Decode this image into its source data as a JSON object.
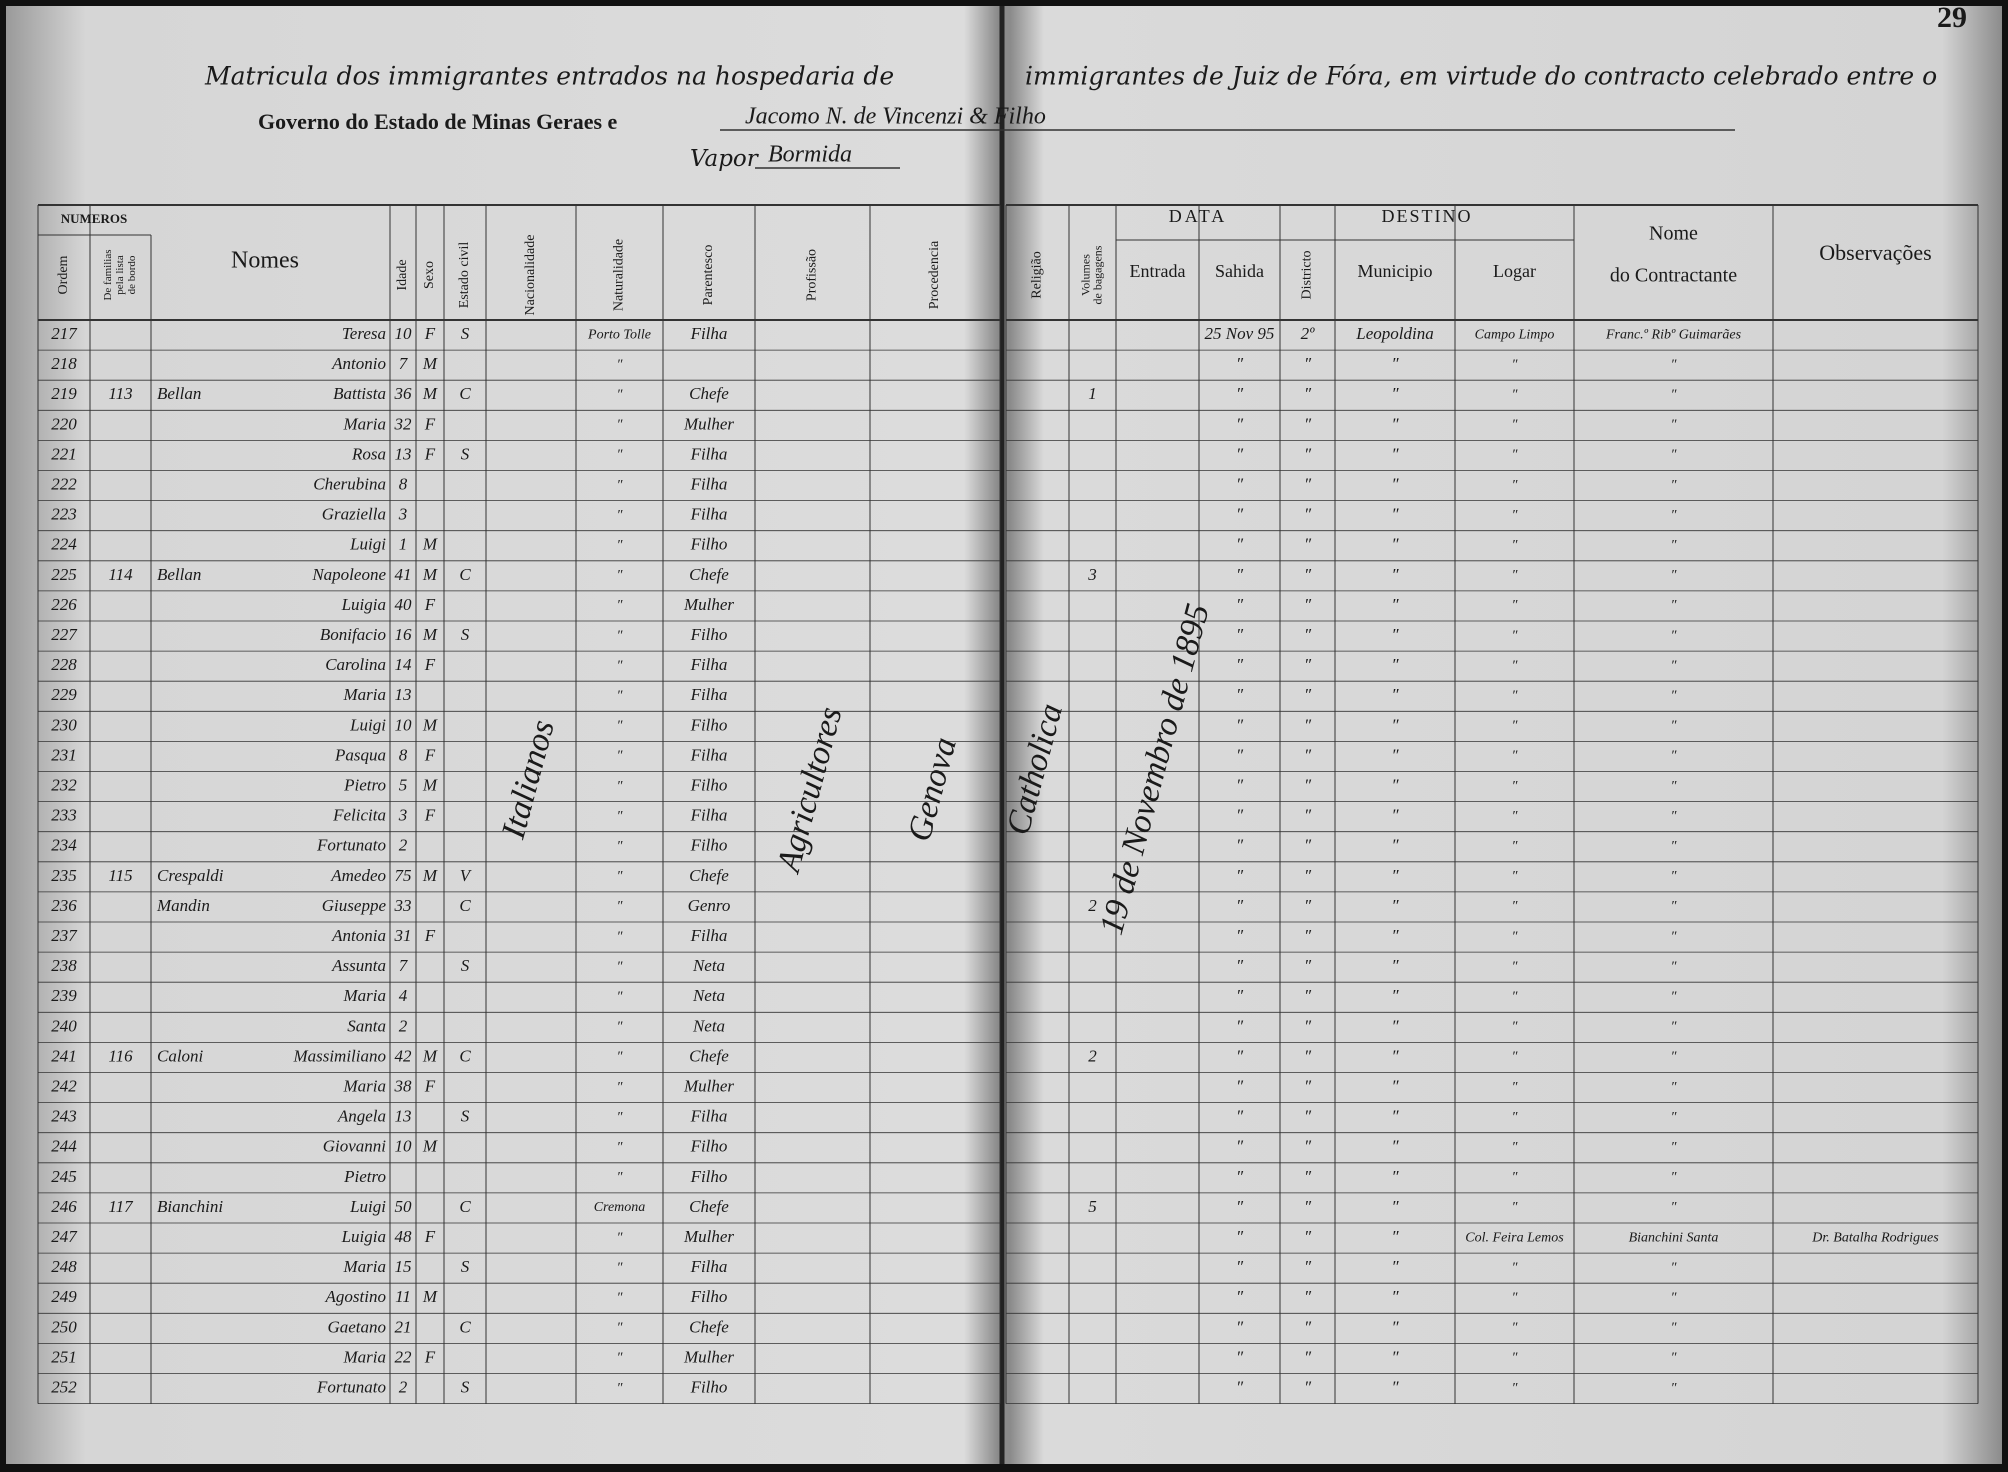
{
  "page_number": "29",
  "header": {
    "title_left": "Matricula dos immigrantes entrados na hospedaria de",
    "title_right": "immigrantes de Juiz de Fóra, em virtude do contracto celebrado entre o",
    "line2_printed": "Governo do Estado de Minas Geraes e",
    "line2_hand": "Jacomo N. de Vincenzi & Filho",
    "vapor_label": "Vapor",
    "vapor_name": "Bormida"
  },
  "columns": {
    "numeros": "NUMEROS",
    "ordem": "Ordem",
    "familias": [
      "De familias",
      "pela lista",
      "de bordo"
    ],
    "nomes": "Nomes",
    "idade": "Idade",
    "sexo": "Sexo",
    "estado_civil": "Estado civil",
    "nacionalidade": "Nacionalidade",
    "naturalidade": "Naturalidade",
    "parentesco": "Parentesco",
    "profissao": "Profissão",
    "procedencia": "Procedencia",
    "religiao": "Religião",
    "volumes": [
      "Volumes",
      "de bagagens"
    ],
    "data": "DATA",
    "entrada": "Entrada",
    "sahida": "Sahida",
    "districto": "Districto",
    "destino": "DESTINO",
    "municipio": "Municipio",
    "logar": "Logar",
    "nome_contractante": [
      "Nome",
      "do Contractante"
    ],
    "observacoes": "Observações"
  },
  "spanning": {
    "nac": "Italianos",
    "prof": "Agricultores",
    "proc": "Genova",
    "rel": "Catholica",
    "en": "19 de Novembro de 1895"
  },
  "rows": [
    {
      "o": "217",
      "n": "Teresa",
      "i": "10",
      "x": "F",
      "e": "S",
      "nat": "Porto Tolle",
      "p": "Filha",
      "sa": "25 Nov 95",
      "di": "2º",
      "mu": "Leopoldina",
      "lo": "Campo Limpo",
      "co": "Franc.º Ribº Guimarães"
    },
    {
      "o": "218",
      "n": "Antonio",
      "i": "7",
      "x": "M",
      "nat": "″",
      "sa": "″",
      "di": "″",
      "mu": "″",
      "lo": "″",
      "co": "″"
    },
    {
      "o": "219",
      "f": "113",
      "s": "Bellan",
      "n": "Battista",
      "i": "36",
      "x": "M",
      "e": "C",
      "nat": "″",
      "p": "Chefe",
      "v": "1",
      "sa": "″",
      "di": "″",
      "mu": "″",
      "lo": "″",
      "co": "″"
    },
    {
      "o": "220",
      "n": "Maria",
      "i": "32",
      "x": "F",
      "nat": "″",
      "p": "Mulher",
      "sa": "″",
      "di": "″",
      "mu": "″",
      "lo": "″",
      "co": "″"
    },
    {
      "o": "221",
      "n": "Rosa",
      "i": "13",
      "x": "F",
      "e": "S",
      "nat": "″",
      "p": "Filha",
      "sa": "″",
      "di": "″",
      "mu": "″",
      "lo": "″",
      "co": "″"
    },
    {
      "o": "222",
      "n": "Cherubina",
      "i": "8",
      "nat": "″",
      "p": "Filha",
      "sa": "″",
      "di": "″",
      "mu": "″",
      "lo": "″",
      "co": "″"
    },
    {
      "o": "223",
      "n": "Graziella",
      "i": "3",
      "nat": "″",
      "p": "Filha",
      "sa": "″",
      "di": "″",
      "mu": "″",
      "lo": "″",
      "co": "″"
    },
    {
      "o": "224",
      "n": "Luigi",
      "i": "1",
      "x": "M",
      "nat": "″",
      "p": "Filho",
      "sa": "″",
      "di": "″",
      "mu": "″",
      "lo": "″",
      "co": "″"
    },
    {
      "o": "225",
      "f": "114",
      "s": "Bellan",
      "n": "Napoleone",
      "i": "41",
      "x": "M",
      "e": "C",
      "nat": "″",
      "p": "Chefe",
      "v": "3",
      "sa": "″",
      "di": "″",
      "mu": "″",
      "lo": "″",
      "co": "″"
    },
    {
      "o": "226",
      "n": "Luigia",
      "i": "40",
      "x": "F",
      "nat": "″",
      "p": "Mulher",
      "sa": "″",
      "di": "″",
      "mu": "″",
      "lo": "″",
      "co": "″"
    },
    {
      "o": "227",
      "n": "Bonifacio",
      "i": "16",
      "x": "M",
      "e": "S",
      "nat": "″",
      "p": "Filho",
      "sa": "″",
      "di": "″",
      "mu": "″",
      "lo": "″",
      "co": "″"
    },
    {
      "o": "228",
      "n": "Carolina",
      "i": "14",
      "x": "F",
      "nat": "″",
      "p": "Filha",
      "sa": "″",
      "di": "″",
      "mu": "″",
      "lo": "″",
      "co": "″"
    },
    {
      "o": "229",
      "n": "Maria",
      "i": "13",
      "nat": "″",
      "p": "Filha",
      "sa": "″",
      "di": "″",
      "mu": "″",
      "lo": "″",
      "co": "″"
    },
    {
      "o": "230",
      "n": "Luigi",
      "i": "10",
      "x": "M",
      "nat": "″",
      "p": "Filho",
      "sa": "″",
      "di": "″",
      "mu": "″",
      "lo": "″",
      "co": "″"
    },
    {
      "o": "231",
      "n": "Pasqua",
      "i": "8",
      "x": "F",
      "nat": "″",
      "p": "Filha",
      "sa": "″",
      "di": "″",
      "mu": "″",
      "lo": "″",
      "co": "″"
    },
    {
      "o": "232",
      "n": "Pietro",
      "i": "5",
      "x": "M",
      "nat": "″",
      "p": "Filho",
      "sa": "″",
      "di": "″",
      "mu": "″",
      "lo": "″",
      "co": "″"
    },
    {
      "o": "233",
      "n": "Felicita",
      "i": "3",
      "x": "F",
      "nat": "″",
      "p": "Filha",
      "sa": "″",
      "di": "″",
      "mu": "″",
      "lo": "″",
      "co": "″"
    },
    {
      "o": "234",
      "n": "Fortunato",
      "i": "2",
      "nat": "″",
      "p": "Filho",
      "sa": "″",
      "di": "″",
      "mu": "″",
      "lo": "″",
      "co": "″"
    },
    {
      "o": "235",
      "f": "115",
      "s": "Crespaldi",
      "n": "Amedeo",
      "i": "75",
      "x": "M",
      "e": "V",
      "nat": "″",
      "p": "Chefe",
      "sa": "″",
      "di": "″",
      "mu": "″",
      "lo": "″",
      "co": "″"
    },
    {
      "o": "236",
      "s": "Mandin",
      "n": "Giuseppe",
      "i": "33",
      "e": "C",
      "nat": "″",
      "p": "Genro",
      "v": "2",
      "sa": "″",
      "di": "″",
      "mu": "″",
      "lo": "″",
      "co": "″"
    },
    {
      "o": "237",
      "n": "Antonia",
      "i": "31",
      "x": "F",
      "nat": "″",
      "p": "Filha",
      "sa": "″",
      "di": "″",
      "mu": "″",
      "lo": "″",
      "co": "″"
    },
    {
      "o": "238",
      "n": "Assunta",
      "i": "7",
      "e": "S",
      "nat": "″",
      "p": "Neta",
      "sa": "″",
      "di": "″",
      "mu": "″",
      "lo": "″",
      "co": "″"
    },
    {
      "o": "239",
      "n": "Maria",
      "i": "4",
      "nat": "″",
      "p": "Neta",
      "sa": "″",
      "di": "″",
      "mu": "″",
      "lo": "″",
      "co": "″"
    },
    {
      "o": "240",
      "n": "Santa",
      "i": "2",
      "nat": "″",
      "p": "Neta",
      "sa": "″",
      "di": "″",
      "mu": "″",
      "lo": "″",
      "co": "″"
    },
    {
      "o": "241",
      "f": "116",
      "s": "Caloni",
      "n": "Massimiliano",
      "i": "42",
      "x": "M",
      "e": "C",
      "nat": "″",
      "p": "Chefe",
      "v": "2",
      "sa": "″",
      "di": "″",
      "mu": "″",
      "lo": "″",
      "co": "″"
    },
    {
      "o": "242",
      "n": "Maria",
      "i": "38",
      "x": "F",
      "nat": "″",
      "p": "Mulher",
      "sa": "″",
      "di": "″",
      "mu": "″",
      "lo": "″",
      "co": "″"
    },
    {
      "o": "243",
      "n": "Angela",
      "i": "13",
      "e": "S",
      "nat": "″",
      "p": "Filha",
      "sa": "″",
      "di": "″",
      "mu": "″",
      "lo": "″",
      "co": "″"
    },
    {
      "o": "244",
      "n": "Giovanni",
      "i": "10",
      "x": "M",
      "nat": "″",
      "p": "Filho",
      "sa": "″",
      "di": "″",
      "mu": "″",
      "lo": "″",
      "co": "″"
    },
    {
      "o": "245",
      "n": "Pietro",
      "nat": "″",
      "p": "Filho",
      "sa": "″",
      "di": "″",
      "mu": "″",
      "lo": "″",
      "co": "″"
    },
    {
      "o": "246",
      "f": "117",
      "s": "Bianchini",
      "n": "Luigi",
      "i": "50",
      "e": "C",
      "nat": "Cremona",
      "p": "Chefe",
      "v": "5",
      "sa": "″",
      "di": "″",
      "mu": "″",
      "lo": "″",
      "co": "″"
    },
    {
      "o": "247",
      "n": "Luigia",
      "i": "48",
      "x": "F",
      "nat": "″",
      "p": "Mulher",
      "sa": "″",
      "di": "″",
      "mu": "″",
      "lo": "Col. Feira Lemos",
      "co": "Bianchini Santa",
      "ob": "Dr. Batalha Rodrigues"
    },
    {
      "o": "248",
      "n": "Maria",
      "i": "15",
      "e": "S",
      "nat": "″",
      "p": "Filha",
      "sa": "″",
      "di": "″",
      "mu": "″",
      "lo": "″",
      "co": "″"
    },
    {
      "o": "249",
      "n": "Agostino",
      "i": "11",
      "x": "M",
      "nat": "″",
      "p": "Filho",
      "sa": "″",
      "di": "″",
      "mu": "″",
      "lo": "″",
      "co": "″"
    },
    {
      "o": "250",
      "n": "Gaetano",
      "i": "21",
      "e": "C",
      "nat": "″",
      "p": "Chefe",
      "sa": "″",
      "di": "″",
      "mu": "″",
      "lo": "″",
      "co": "″"
    },
    {
      "o": "251",
      "n": "Maria",
      "i": "22",
      "x": "F",
      "nat": "″",
      "p": "Mulher",
      "sa": "″",
      "di": "″",
      "mu": "″",
      "lo": "″",
      "co": "″"
    },
    {
      "o": "252",
      "n": "Fortunato",
      "i": "2",
      "e": "S",
      "nat": "″",
      "p": "Filho",
      "sa": "″",
      "di": "″",
      "mu": "″",
      "lo": "″",
      "co": "″"
    }
  ]
}
